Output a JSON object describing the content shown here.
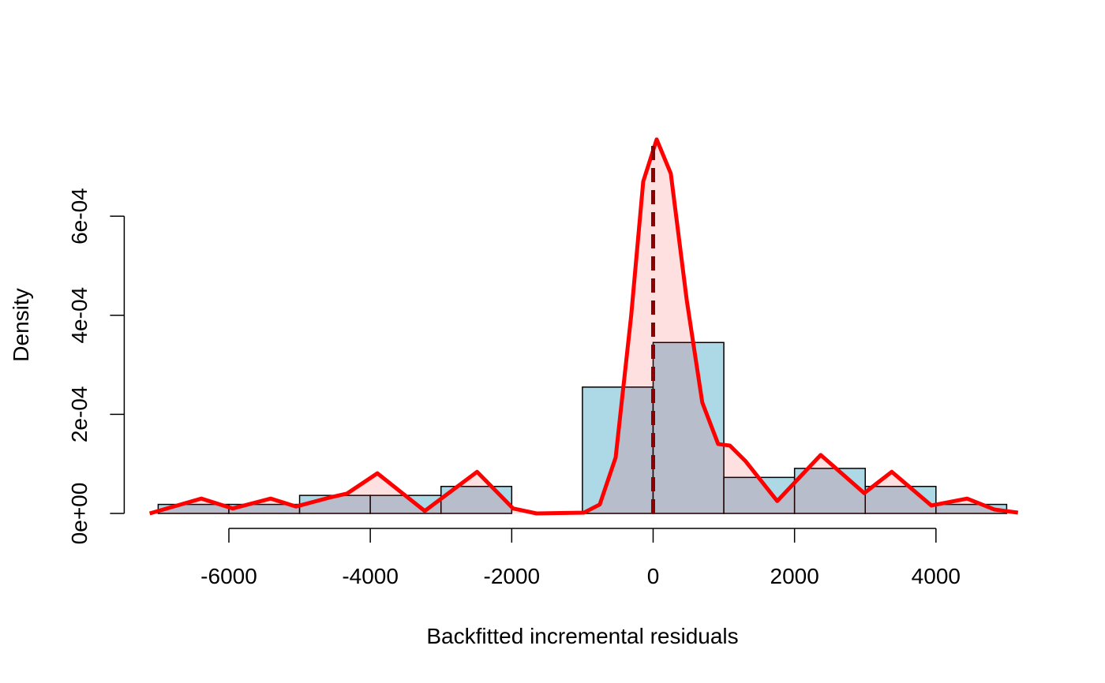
{
  "chart_data": {
    "type": "histogram",
    "xlabel": "Backfitted incremental residuals",
    "ylabel": "Density",
    "bins": [
      -7000,
      -6000,
      -5000,
      -4000,
      -3000,
      -2000,
      -1000,
      0,
      1000,
      2000,
      3000,
      4000,
      5000
    ],
    "values": [
      1.82e-05,
      1.82e-05,
      3.64e-05,
      3.64e-05,
      5.45e-05,
      0,
      0.000255,
      0.000345,
      7.27e-05,
      9.09e-05,
      5.45e-05,
      1.82e-05
    ],
    "color": "#add8e6",
    "density": {
      "color": "#ff0000",
      "x": [
        -7120,
        -6390,
        -5945,
        -5410,
        -5050,
        -4550,
        -4330,
        -3900,
        -3230,
        -2490,
        -1980,
        -1650,
        -980,
        -755,
        -530,
        -310,
        -140,
        50,
        250,
        475,
        695,
        920,
        1085,
        1310,
        1755,
        2370,
        2985,
        3375,
        3935,
        4440,
        4825,
        5160
      ],
      "values": [
        0,
        3e-05,
        1e-05,
        3e-05,
        1.4e-05,
        3.3e-05,
        4e-05,
        8.1e-05,
        5e-06,
        8.4e-05,
        1e-05,
        0,
        1.5e-06,
        1.8e-05,
        0.000113,
        0.0004,
        0.00067,
        0.000755,
        0.000686,
        0.000431,
        0.000224,
        0.00014,
        0.000137,
        0.000105,
        2.5e-05,
        0.000118,
        4.1e-05,
        8.4e-05,
        1.6e-05,
        3e-05,
        8e-06,
        1.6e-06
      ]
    },
    "vline": {
      "x": 0,
      "color": "#8b0000"
    },
    "xlim": [
      -7480,
      5520
    ],
    "ylim": [
      0,
      0.00078
    ],
    "xticks": [
      -6000,
      -4000,
      -2000,
      0,
      2000,
      4000
    ],
    "yticks": [
      {
        "value": 0,
        "label": "0e+00"
      },
      {
        "value": 0.0002,
        "label": "2e-04"
      },
      {
        "value": 0.0004,
        "label": "4e-04"
      },
      {
        "value": 0.0006,
        "label": "6e-04"
      }
    ]
  }
}
